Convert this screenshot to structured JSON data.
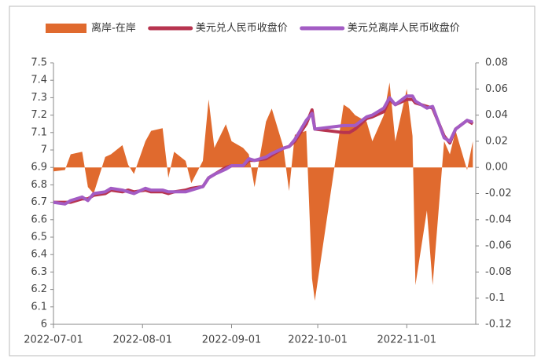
{
  "chart_data": {
    "type": "combo",
    "x": [
      "2022-07-01",
      "2022-07-05",
      "2022-07-07",
      "2022-07-11",
      "2022-07-13",
      "2022-07-15",
      "2022-07-19",
      "2022-07-21",
      "2022-07-25",
      "2022-07-27",
      "2022-07-29",
      "2022-08-02",
      "2022-08-04",
      "2022-08-08",
      "2022-08-10",
      "2022-08-12",
      "2022-08-16",
      "2022-08-18",
      "2022-08-22",
      "2022-08-24",
      "2022-08-26",
      "2022-08-30",
      "2022-09-01",
      "2022-09-05",
      "2022-09-07",
      "2022-09-09",
      "2022-09-13",
      "2022-09-15",
      "2022-09-19",
      "2022-09-21",
      "2022-09-23",
      "2022-09-27",
      "2022-09-29",
      "2022-09-30",
      "2022-10-10",
      "2022-10-12",
      "2022-10-14",
      "2022-10-18",
      "2022-10-20",
      "2022-10-24",
      "2022-10-26",
      "2022-10-28",
      "2022-11-01",
      "2022-11-03",
      "2022-11-04",
      "2022-11-08",
      "2022-11-10",
      "2022-11-14",
      "2022-11-16",
      "2022-11-18",
      "2022-11-22",
      "2022-11-24"
    ],
    "series": [
      {
        "name": "离岸-在岸",
        "color": "#e06a2e",
        "axis": "y2",
        "kind": "area",
        "values": [
          -0.003,
          -0.002,
          0.01,
          0.012,
          -0.015,
          -0.02,
          0.008,
          0.01,
          0.017,
          0.002,
          -0.005,
          0.02,
          0.028,
          0.03,
          -0.008,
          0.012,
          0.005,
          -0.012,
          0.005,
          0.052,
          0.015,
          0.033,
          0.02,
          0.015,
          0.01,
          -0.015,
          0.035,
          0.045,
          0.016,
          -0.018,
          0.025,
          0.028,
          -0.085,
          -0.102,
          0.048,
          0.045,
          0.04,
          0.035,
          0.02,
          0.04,
          0.065,
          0.02,
          0.06,
          0.024,
          -0.09,
          -0.033,
          -0.09,
          0.02,
          0.01,
          0.028,
          -0.002,
          0.02
        ]
      },
      {
        "name": "美元兑人民币收盘价",
        "color": "#b7344f",
        "kind": "line",
        "values": [
          6.7,
          6.7,
          6.7,
          6.72,
          6.72,
          6.74,
          6.75,
          6.77,
          6.76,
          6.77,
          6.76,
          6.77,
          6.76,
          6.76,
          6.75,
          6.76,
          6.77,
          6.78,
          6.79,
          6.84,
          6.86,
          6.9,
          6.91,
          6.91,
          6.94,
          6.94,
          6.95,
          6.97,
          7.01,
          7.02,
          7.05,
          7.15,
          7.23,
          7.12,
          7.1,
          7.1,
          7.12,
          7.18,
          7.19,
          7.22,
          7.29,
          7.26,
          7.29,
          7.29,
          7.27,
          7.25,
          7.24,
          7.08,
          7.04,
          7.12,
          7.17,
          7.15
        ]
      },
      {
        "name": "美元兑离岸人民币收盘价",
        "color": "#a35cc4",
        "kind": "line",
        "values": [
          6.7,
          6.69,
          6.71,
          6.73,
          6.71,
          6.75,
          6.76,
          6.78,
          6.77,
          6.76,
          6.75,
          6.78,
          6.77,
          6.77,
          6.76,
          6.76,
          6.76,
          6.77,
          6.79,
          6.84,
          6.86,
          6.89,
          6.91,
          6.91,
          6.95,
          6.94,
          6.96,
          6.98,
          7.01,
          7.02,
          7.06,
          7.17,
          7.21,
          7.12,
          7.14,
          7.14,
          7.14,
          7.19,
          7.2,
          7.24,
          7.3,
          7.26,
          7.31,
          7.31,
          7.28,
          7.24,
          7.25,
          7.07,
          7.05,
          7.12,
          7.17,
          7.16
        ]
      }
    ],
    "xlim": [
      "2022-07-01",
      "2022-11-25"
    ],
    "xticks": [
      "2022-07-01",
      "2022-08-01",
      "2022-09-01",
      "2022-10-01",
      "2022-11-01"
    ],
    "ylim": [
      6,
      7.5
    ],
    "yticks": [
      6,
      6.1,
      6.2,
      6.3,
      6.4,
      6.5,
      6.6,
      6.7,
      6.8,
      6.9,
      7,
      7.1,
      7.2,
      7.3,
      7.4,
      7.5
    ],
    "y2lim": [
      -0.12,
      0.08
    ],
    "y2ticks": [
      -0.12,
      -0.1,
      -0.08,
      -0.06,
      -0.04,
      -0.02,
      {
        "value": 0,
        "label": "0.00"
      },
      0.02,
      0.04,
      0.06,
      0.08
    ],
    "legend": "top"
  }
}
